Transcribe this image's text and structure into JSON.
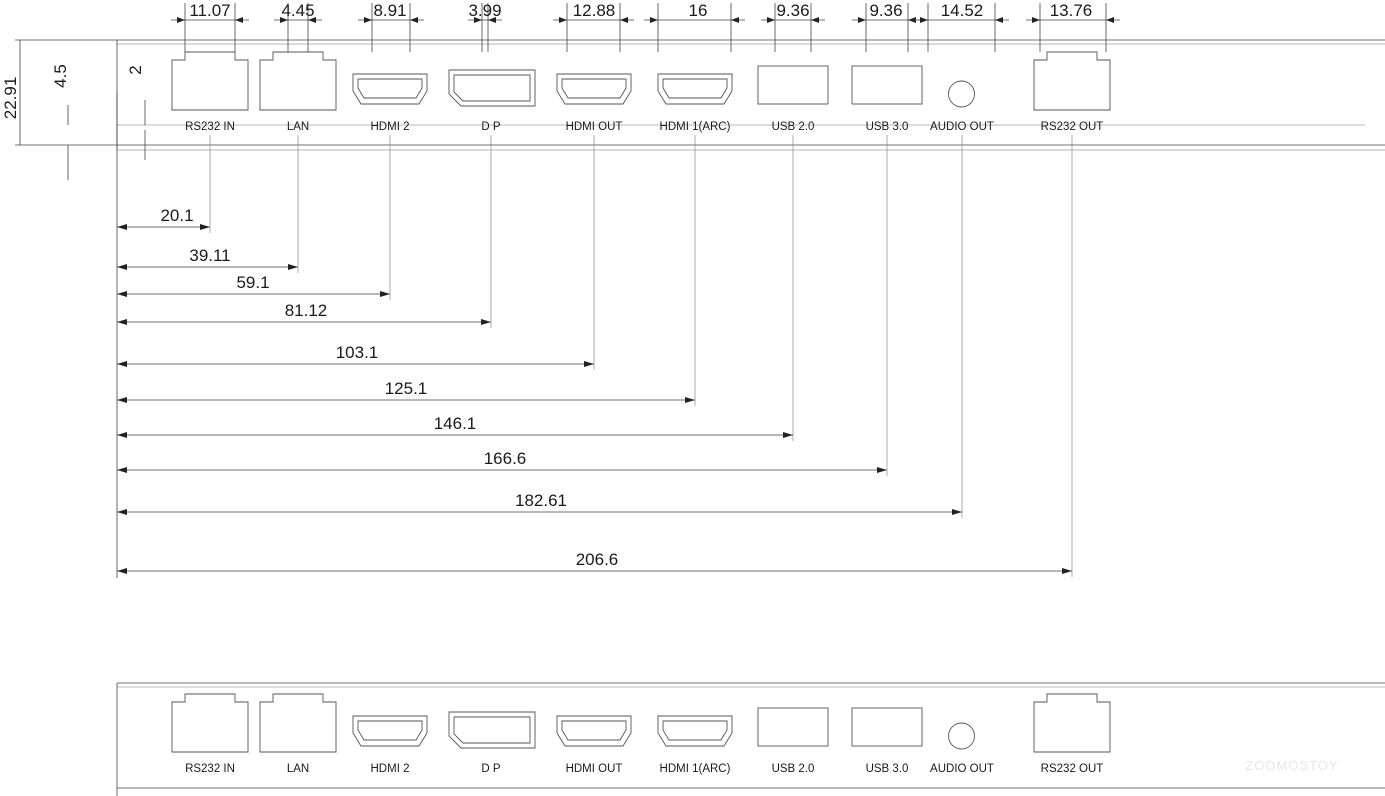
{
  "ports": [
    {
      "label": "RS232 IN",
      "kind": "rj45",
      "width_dim": "11.07",
      "offset_dim": "20.1"
    },
    {
      "label": "LAN",
      "kind": "rj45",
      "width_dim": "4.45",
      "offset_dim": "39.11"
    },
    {
      "label": "HDMI 2",
      "kind": "hdmi-small",
      "width_dim": "8.91",
      "offset_dim": "59.1"
    },
    {
      "label": "D P",
      "kind": "dp",
      "width_dim": "3.99",
      "offset_dim": "81.12"
    },
    {
      "label": "HDMI OUT",
      "kind": "hdmi",
      "width_dim": "12.88",
      "offset_dim": "103.1"
    },
    {
      "label": "HDMI 1(ARC)",
      "kind": "hdmi",
      "width_dim": "16",
      "offset_dim": "125.1"
    },
    {
      "label": "USB 2.0",
      "kind": "usb",
      "width_dim": "9.36",
      "offset_dim": "146.1"
    },
    {
      "label": "USB 3.0",
      "kind": "usb",
      "width_dim": "9.36",
      "offset_dim": "166.6"
    },
    {
      "label": "AUDIO OUT",
      "kind": "audio",
      "width_dim": "14.52",
      "offset_dim": "182.61"
    },
    {
      "label": "RS232 OUT",
      "kind": "rj45",
      "width_dim": "13.76",
      "offset_dim": "206.6"
    }
  ],
  "vertical_dims": {
    "total_height": "22.91",
    "label_band": "4.5",
    "edge_gap": "2"
  },
  "watermark": "ZOOMOSTOY"
}
